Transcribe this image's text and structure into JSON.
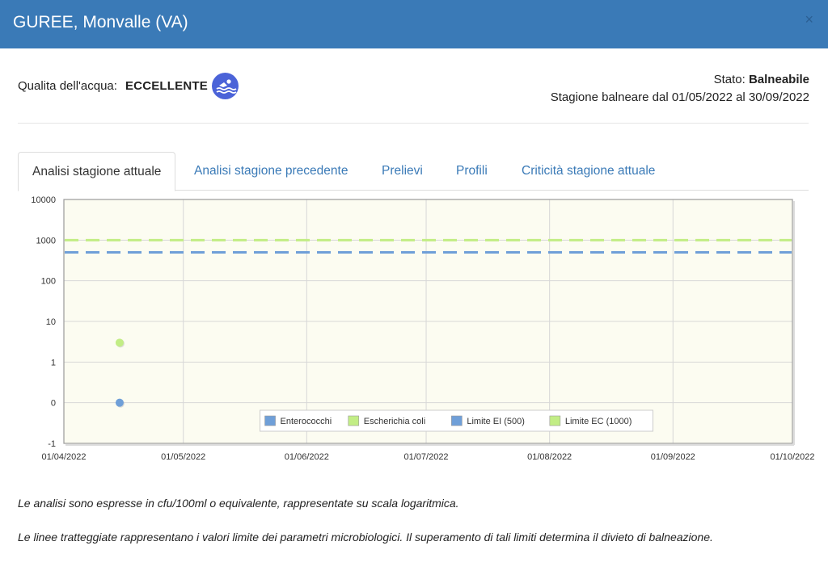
{
  "header": {
    "title": "GUREE, Monvalle (VA)",
    "close_label": "×"
  },
  "quality": {
    "label": "Qualita dell'acqua:",
    "value": "ECCELLENTE",
    "icon": "swimmer-icon",
    "icon_color": "#4b63d8"
  },
  "status": {
    "state_label": "Stato:",
    "state_value": "Balneabile",
    "season": "Stagione balneare dal 01/05/2022 al 30/09/2022"
  },
  "tabs": [
    {
      "label": "Analisi stagione attuale",
      "active": true
    },
    {
      "label": "Analisi stagione precedente",
      "active": false
    },
    {
      "label": "Prelievi",
      "active": false
    },
    {
      "label": "Profili",
      "active": false
    },
    {
      "label": "Criticità stagione attuale",
      "active": false
    }
  ],
  "chart_data": {
    "type": "scatter",
    "title": "",
    "xlabel": "",
    "ylabel": "",
    "x_ticks": [
      "01/04/2022",
      "01/05/2022",
      "01/06/2022",
      "01/07/2022",
      "01/08/2022",
      "01/09/2022",
      "01/10/2022"
    ],
    "xlim": [
      "01/04/2022",
      "01/10/2022"
    ],
    "y_ticks": [
      "10000",
      "1000",
      "100",
      "10",
      "1",
      "0",
      "-1"
    ],
    "y_scale": "log",
    "grid": true,
    "legend_position": "bottom-center",
    "series": [
      {
        "name": "Enterococchi",
        "kind": "points",
        "color": "#6f9fd8",
        "points": [
          {
            "x": "15/04/2022",
            "y": 0
          }
        ]
      },
      {
        "name": "Escherichia coli",
        "kind": "points",
        "color": "#c2ed85",
        "points": [
          {
            "x": "15/04/2022",
            "y": 3
          }
        ]
      },
      {
        "name": "Limite EI (500)",
        "kind": "limit",
        "color": "#6f9fd8",
        "value": 500
      },
      {
        "name": "Limite EC (1000)",
        "kind": "limit",
        "color": "#c2ed85",
        "value": 1000
      }
    ]
  },
  "notes": [
    "Le analisi sono espresse in cfu/100ml o equivalente, rappresentate su scala logaritmica.",
    "Le linee tratteggiate rappresentano i valori limite dei parametri microbiologici. Il superamento di tali limiti determina il divieto di balneazione."
  ]
}
